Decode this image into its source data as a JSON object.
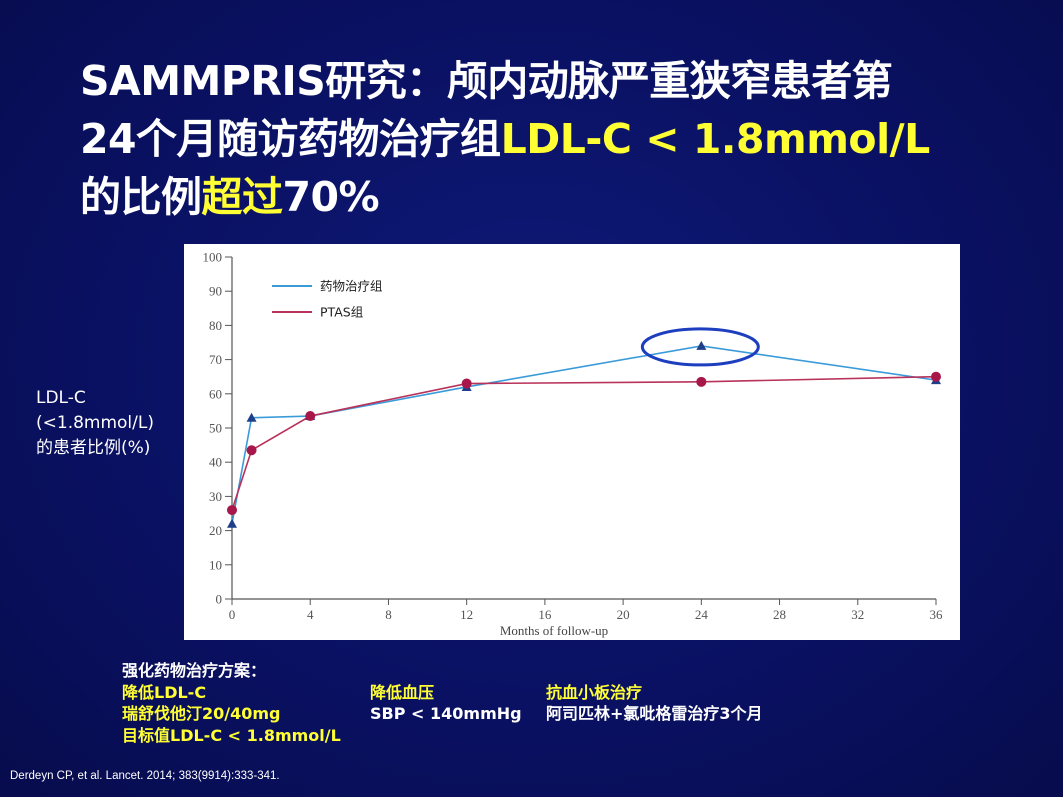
{
  "slide": {
    "title_line1": "SAMMPRIS研究：颅内动脉严重狭窄患者第",
    "title_line2_a": "24个月随访药物治疗组",
    "title_line2_b": "LDL-C < 1.8mmol/L",
    "title_line3_a": "的比例",
    "title_line3_b": "超过",
    "title_line3_c": "70%",
    "highlight_color": "#ffff33",
    "background_color": "#0a1163"
  },
  "ylabel": {
    "line1": "LDL-C",
    "line2": "(<1.8mmol/L)",
    "line3": "的患者比例(%)"
  },
  "chart_data": {
    "type": "line",
    "xlabel": "Months of follow-up",
    "ylabel": "",
    "xlim": [
      0,
      36
    ],
    "ylim": [
      0,
      100
    ],
    "x_ticks": [
      0,
      4,
      8,
      12,
      16,
      20,
      24,
      28,
      32,
      36
    ],
    "y_ticks": [
      0,
      10,
      20,
      30,
      40,
      50,
      60,
      70,
      80,
      90,
      100
    ],
    "legend_position": "top-left",
    "grid": false,
    "series": [
      {
        "name": "药物治疗组",
        "color": "#3b9bd9",
        "marker": "triangle",
        "marker_color": "#1f3f8a",
        "x": [
          0,
          1,
          4,
          12,
          24,
          36
        ],
        "y": [
          22,
          53,
          53.5,
          62,
          74,
          64
        ]
      },
      {
        "name": "PTAS组",
        "color": "#b8325a",
        "marker": "circle",
        "marker_color": "#a8174a",
        "x": [
          0,
          1,
          4,
          12,
          24,
          36
        ],
        "y": [
          26,
          43.5,
          53.5,
          63,
          63.5,
          65
        ]
      }
    ],
    "annotation": {
      "shape": "ellipse",
      "at_x": 24,
      "at_y": 74,
      "color": "#1d3fbf"
    }
  },
  "regimen": {
    "heading": "强化药物治疗方案：",
    "col1": [
      "降低LDL-C",
      "瑞舒伐他汀20/40mg",
      "目标值LDL-C < 1.8mmol/L"
    ],
    "col2": [
      "降低血压",
      "SBP < 140mmHg"
    ],
    "col3": [
      "抗血小板治疗",
      "阿司匹林+氯吡格雷治疗3个月"
    ]
  },
  "citation": "Derdeyn CP, et al. Lancet. 2014; 383(9914):333-341."
}
